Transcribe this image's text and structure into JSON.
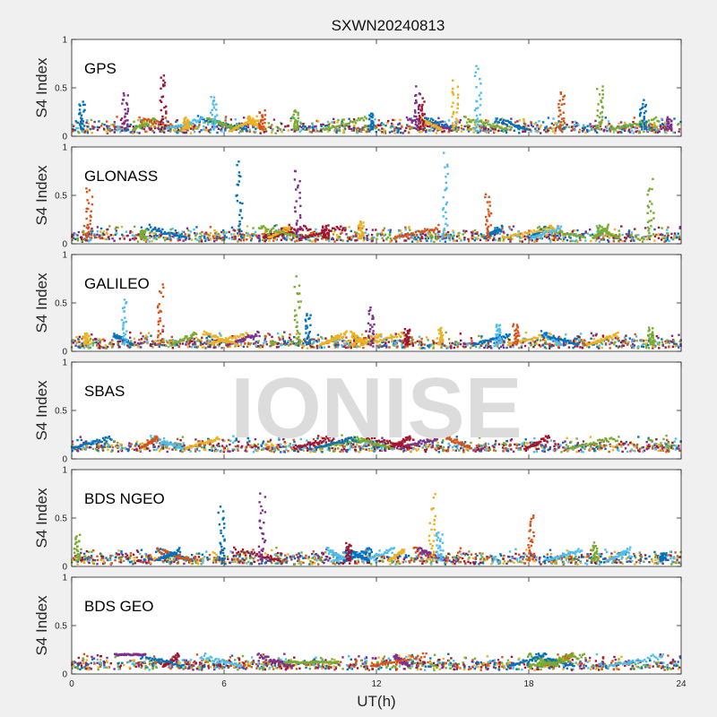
{
  "chart_data": {
    "type": "scatter",
    "title": "SXWN20240813",
    "xlabel": "UT(h)",
    "ylabel": "S4 Index",
    "xlim": [
      0,
      24
    ],
    "ylim": [
      0,
      1
    ],
    "xticks": [
      "0",
      "6",
      "12",
      "18",
      "24"
    ],
    "yticks": [
      "0",
      "0.5",
      "1"
    ],
    "watermark": "IONISE",
    "colors": [
      "#0072BD",
      "#D95319",
      "#EDB120",
      "#7E2F8E",
      "#77AC30",
      "#4DBEEE",
      "#A2142F"
    ],
    "panels": [
      {
        "name": "GPS",
        "baseline": 0.07,
        "spikes": [
          [
            0.4,
            0.38
          ],
          [
            2.1,
            0.48
          ],
          [
            3.6,
            0.72
          ],
          [
            4.5,
            0.2
          ],
          [
            5.6,
            0.44
          ],
          [
            7.5,
            0.27
          ],
          [
            8.8,
            0.28
          ],
          [
            11.8,
            0.25
          ],
          [
            13.6,
            0.52
          ],
          [
            13.8,
            0.4
          ],
          [
            15.1,
            0.6
          ],
          [
            16.0,
            0.73
          ],
          [
            19.3,
            0.5
          ],
          [
            20.8,
            0.55
          ],
          [
            22.5,
            0.38
          ],
          [
            23.5,
            0.2
          ]
        ]
      },
      {
        "name": "GLONASS",
        "baseline": 0.06,
        "spikes": [
          [
            0.7,
            0.6
          ],
          [
            2.8,
            0.15
          ],
          [
            6.6,
            0.9
          ],
          [
            8.9,
            0.8
          ],
          [
            10.0,
            0.2
          ],
          [
            11.4,
            0.25
          ],
          [
            14.7,
            0.95
          ],
          [
            16.4,
            0.53
          ],
          [
            22.8,
            0.68
          ]
        ]
      },
      {
        "name": "GALILEO",
        "baseline": 0.07,
        "spikes": [
          [
            0.6,
            0.2
          ],
          [
            2.1,
            0.56
          ],
          [
            3.5,
            0.72
          ],
          [
            8.9,
            0.78
          ],
          [
            9.3,
            0.42
          ],
          [
            11.8,
            0.48
          ],
          [
            13.2,
            0.25
          ],
          [
            14.5,
            0.25
          ],
          [
            16.8,
            0.3
          ],
          [
            17.5,
            0.3
          ],
          [
            22.8,
            0.25
          ]
        ]
      },
      {
        "name": "SBAS",
        "baseline": 0.11,
        "spikes": []
      },
      {
        "name": "BDS NGEO",
        "baseline": 0.06,
        "spikes": [
          [
            0.2,
            0.35
          ],
          [
            5.9,
            0.66
          ],
          [
            7.5,
            0.79
          ],
          [
            10.9,
            0.25
          ],
          [
            14.2,
            0.75
          ],
          [
            14.5,
            0.4
          ],
          [
            18.1,
            0.58
          ],
          [
            20.6,
            0.25
          ],
          [
            23.3,
            0.15
          ]
        ]
      },
      {
        "name": "BDS GEO",
        "baseline": 0.08,
        "spikes": [],
        "segments": [
          [
            1.7,
            2.9,
            0.2
          ],
          [
            8.4,
            10.5,
            0.12
          ]
        ]
      }
    ]
  }
}
